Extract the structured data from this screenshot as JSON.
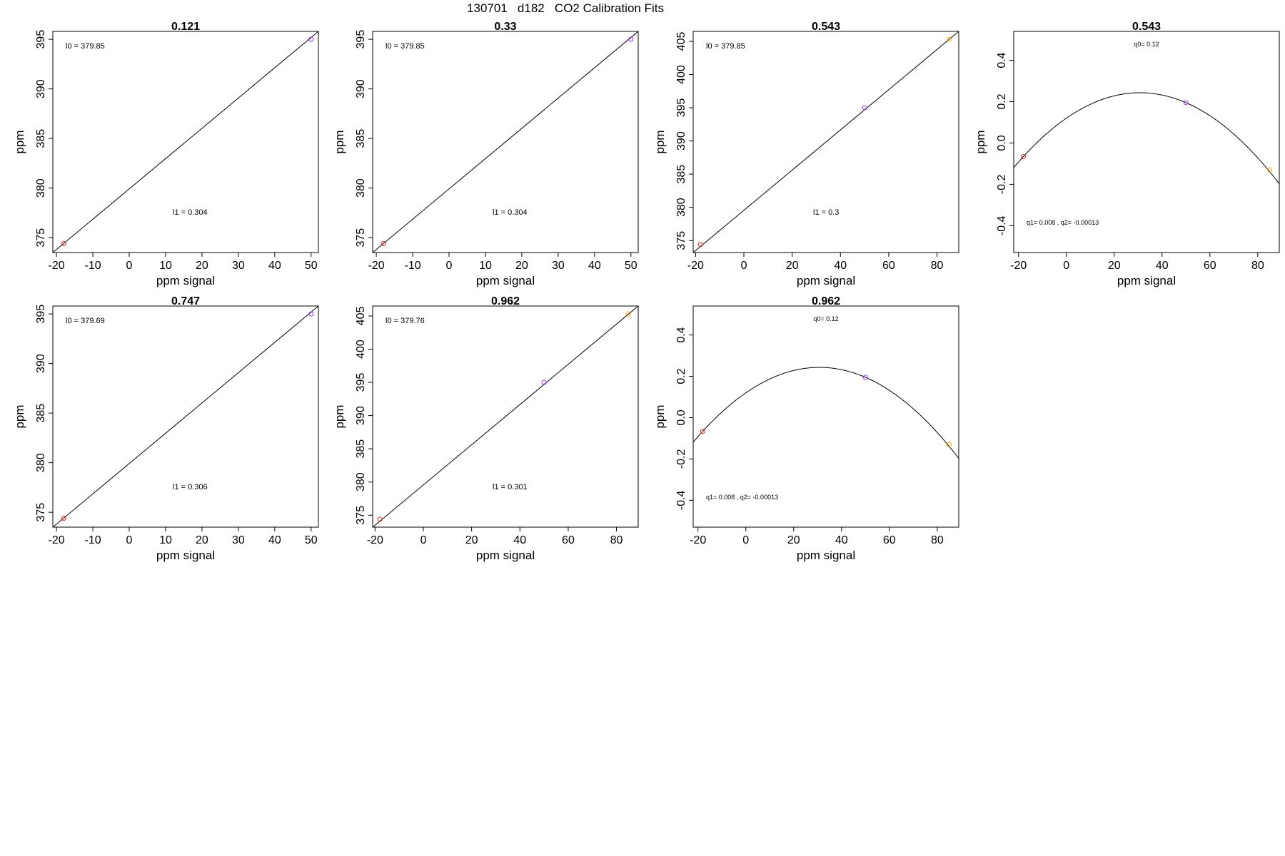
{
  "page_title": "130701   d182   CO2 Calibration Fits",
  "colors": {
    "point_red": "#e0201b",
    "point_purple": "#9b30ff",
    "point_orange": "#ffa500",
    "line": "#000000"
  },
  "chart_data": [
    {
      "type": "line",
      "title": "0.121",
      "xlabel": "ppm signal",
      "ylabel": "ppm",
      "xlim": [
        -21,
        52
      ],
      "ylim": [
        373.5,
        395.8
      ],
      "xticks": [
        "-20",
        "-10",
        "0",
        "10",
        "20",
        "30",
        "40",
        "50"
      ],
      "yticks": [
        "375",
        "380",
        "385",
        "390",
        "395"
      ],
      "fit_line": [
        {
          "x": -21,
          "y": 373.5
        },
        {
          "x": 52,
          "y": 395.8
        }
      ],
      "points": [
        {
          "x": -18,
          "y": 374.4,
          "color": "red"
        },
        {
          "x": 50,
          "y": 395,
          "color": "purple"
        }
      ],
      "annotations": [
        "l0 =  379.85",
        "l1 =  0.304"
      ]
    },
    {
      "type": "line",
      "title": "0.33",
      "xlabel": "ppm signal",
      "ylabel": "ppm",
      "xlim": [
        -21,
        52
      ],
      "ylim": [
        373.5,
        395.8
      ],
      "xticks": [
        "-20",
        "-10",
        "0",
        "10",
        "20",
        "30",
        "40",
        "50"
      ],
      "yticks": [
        "375",
        "380",
        "385",
        "390",
        "395"
      ],
      "fit_line": [
        {
          "x": -21,
          "y": 373.5
        },
        {
          "x": 52,
          "y": 395.8
        }
      ],
      "points": [
        {
          "x": -18,
          "y": 374.4,
          "color": "red"
        },
        {
          "x": 50,
          "y": 395,
          "color": "purple"
        }
      ],
      "annotations": [
        "l0 =  379.85",
        "l1 =  0.304"
      ]
    },
    {
      "type": "line",
      "title": "0.543",
      "xlabel": "ppm signal",
      "ylabel": "ppm",
      "xlim": [
        -21,
        89
      ],
      "ylim": [
        373.2,
        406.5
      ],
      "xticks": [
        "-20",
        "0",
        "20",
        "40",
        "60",
        "80"
      ],
      "yticks": [
        "375",
        "380",
        "385",
        "390",
        "395",
        "400",
        "405"
      ],
      "fit_line": [
        {
          "x": -21,
          "y": 373.2
        },
        {
          "x": 89,
          "y": 406.5
        }
      ],
      "points": [
        {
          "x": -18,
          "y": 374.4,
          "color": "red"
        },
        {
          "x": 50,
          "y": 395,
          "color": "purple"
        },
        {
          "x": 85,
          "y": 405.3,
          "color": "orange"
        }
      ],
      "annotations": [
        "l0 =  379.85",
        "l1 =  0.3"
      ]
    },
    {
      "type": "line",
      "title": "0.543",
      "xlabel": "ppm signal",
      "ylabel": "ppm",
      "xlim": [
        -22,
        89
      ],
      "ylim": [
        -0.53,
        0.54
      ],
      "xticks": [
        "-20",
        "0",
        "20",
        "40",
        "60",
        "80"
      ],
      "yticks": [
        "-0.4",
        "-0.2",
        "0.0",
        "0.2",
        "0.4"
      ],
      "curve": {
        "q0": 0.12,
        "q1": 0.008,
        "q2": -0.00013
      },
      "points": [
        {
          "x": -18,
          "y": -0.066,
          "color": "red"
        },
        {
          "x": 50,
          "y": 0.195,
          "color": "purple"
        },
        {
          "x": 85,
          "y": -0.13,
          "color": "orange"
        }
      ],
      "annotations": [
        "q0= 0.12",
        "q1= 0.008 , q2= -0.00013"
      ]
    },
    {
      "type": "line",
      "title": "0.747",
      "xlabel": "ppm signal",
      "ylabel": "ppm",
      "xlim": [
        -21,
        52
      ],
      "ylim": [
        373.5,
        395.8
      ],
      "xticks": [
        "-20",
        "-10",
        "0",
        "10",
        "20",
        "30",
        "40",
        "50"
      ],
      "yticks": [
        "375",
        "380",
        "385",
        "390",
        "395"
      ],
      "fit_line": [
        {
          "x": -21,
          "y": 373.5
        },
        {
          "x": 52,
          "y": 395.8
        }
      ],
      "points": [
        {
          "x": -18,
          "y": 374.4,
          "color": "red"
        },
        {
          "x": 50,
          "y": 395,
          "color": "purple"
        }
      ],
      "annotations": [
        "l0 =  379.69",
        "l1 =  0.306"
      ]
    },
    {
      "type": "line",
      "title": "0.962",
      "xlabel": "ppm signal",
      "ylabel": "ppm",
      "xlim": [
        -21,
        89
      ],
      "ylim": [
        373.2,
        406.5
      ],
      "xticks": [
        "-20",
        "0",
        "20",
        "40",
        "60",
        "80"
      ],
      "yticks": [
        "375",
        "380",
        "385",
        "390",
        "395",
        "400",
        "405"
      ],
      "fit_line": [
        {
          "x": -21,
          "y": 373.2
        },
        {
          "x": 89,
          "y": 406.5
        }
      ],
      "points": [
        {
          "x": -18,
          "y": 374.4,
          "color": "red"
        },
        {
          "x": 50,
          "y": 395,
          "color": "purple"
        },
        {
          "x": 85,
          "y": 405.3,
          "color": "orange"
        }
      ],
      "annotations": [
        "l0 =  379.76",
        "l1 =  0.301"
      ]
    },
    {
      "type": "line",
      "title": "0.962",
      "xlabel": "ppm signal",
      "ylabel": "ppm",
      "xlim": [
        -22,
        89
      ],
      "ylim": [
        -0.53,
        0.54
      ],
      "xticks": [
        "-20",
        "0",
        "20",
        "40",
        "60",
        "80"
      ],
      "yticks": [
        "-0.4",
        "-0.2",
        "0.0",
        "0.2",
        "0.4"
      ],
      "curve": {
        "q0": 0.12,
        "q1": 0.008,
        "q2": -0.00013
      },
      "points": [
        {
          "x": -18,
          "y": -0.066,
          "color": "red"
        },
        {
          "x": 50,
          "y": 0.195,
          "color": "purple"
        },
        {
          "x": 85,
          "y": -0.13,
          "color": "orange"
        }
      ],
      "annotations": [
        "q0= 0.12",
        "q1= 0.008 , q2= -0.00013"
      ]
    }
  ]
}
